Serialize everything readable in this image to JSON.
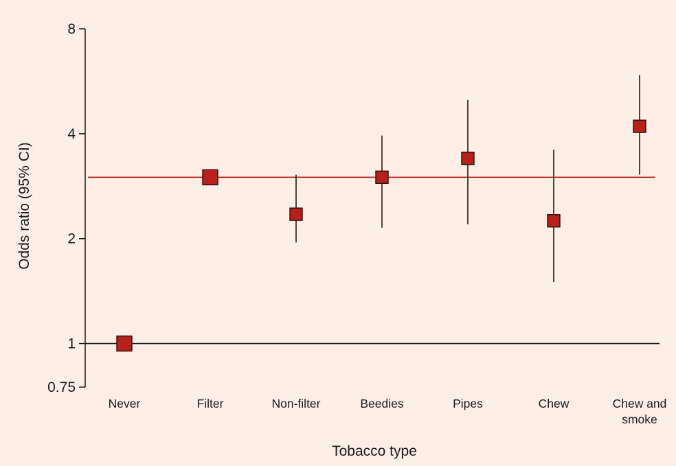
{
  "chart_data": {
    "type": "scatter",
    "title": "",
    "xlabel": "Tobacco type",
    "ylabel": "Odds ratio (95% CI)",
    "y_scale": "log",
    "ylim": [
      0.75,
      8
    ],
    "y_ticks": [
      {
        "value": 0.75,
        "label": "0.75"
      },
      {
        "value": 1,
        "label": "1"
      },
      {
        "value": 2,
        "label": "2"
      },
      {
        "value": 4,
        "label": "4"
      },
      {
        "value": 8,
        "label": "8"
      }
    ],
    "categories": [
      [
        "Never"
      ],
      [
        "Filter"
      ],
      [
        "Non-filter"
      ],
      [
        "Beedies"
      ],
      [
        "Pipes"
      ],
      [
        "Chew"
      ],
      [
        "Chew and",
        "smoke"
      ]
    ],
    "series": [
      {
        "values": [
          1.0,
          3.0,
          2.35,
          3.0,
          3.4,
          2.25,
          4.2
        ],
        "ci_low": [
          1.0,
          2.9,
          1.95,
          2.15,
          2.2,
          1.5,
          3.05
        ],
        "ci_high": [
          1.0,
          3.15,
          3.05,
          3.95,
          5.0,
          3.6,
          5.9
        ]
      }
    ],
    "reference_lines": [
      {
        "value": 1,
        "color": "#1a1a1a"
      },
      {
        "value": 3.0,
        "color": "#b8211a"
      }
    ],
    "grid": false,
    "legend": "none",
    "colors": {
      "background": "#fdefe6",
      "marker_fill": "#b8211a",
      "marker_stroke": "#2a0d0a",
      "ci_line": "#1a1a1a",
      "axis": "#1a1a1a"
    }
  }
}
